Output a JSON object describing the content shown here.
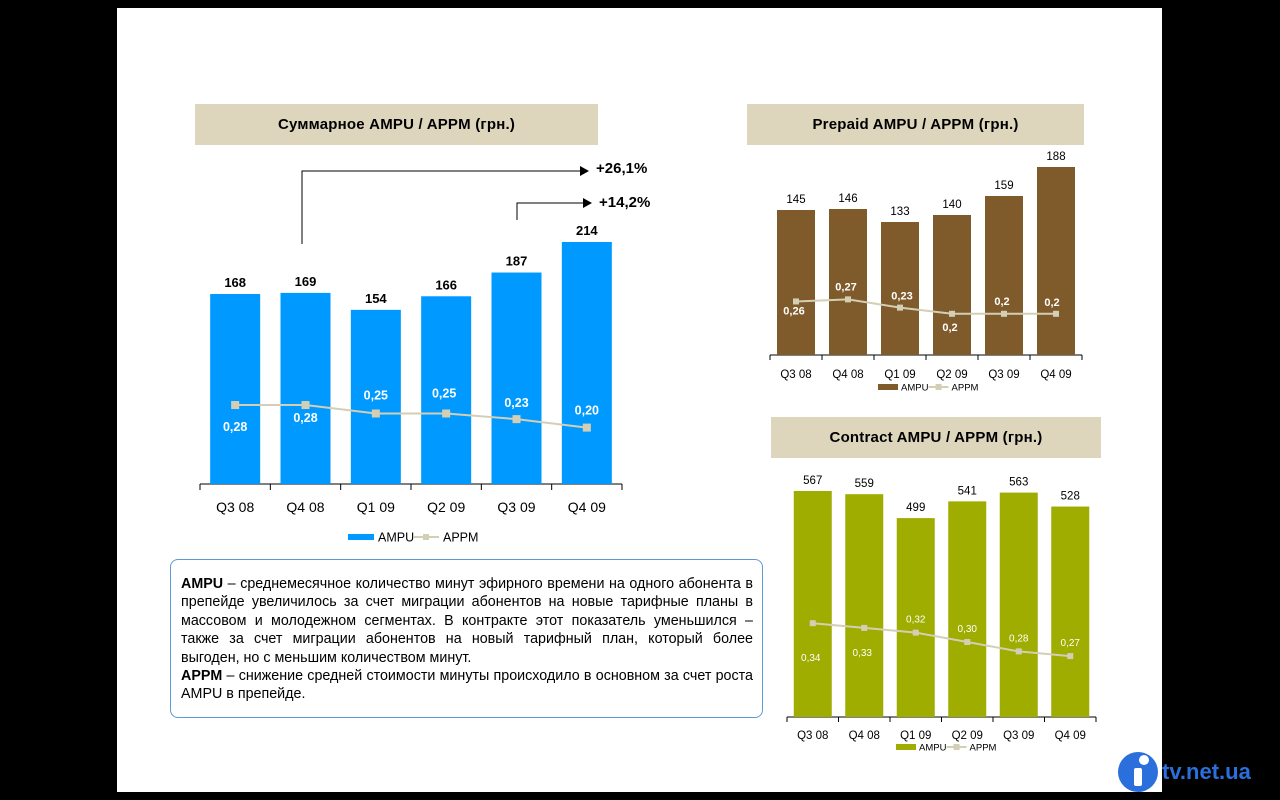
{
  "titles": {
    "total": "Суммарное AMPU / APPM (грн.)",
    "prepaid": "Prepaid AMPU / APPM (грн.)",
    "contract": "Contract AMPU / APPM (грн.)"
  },
  "growth": {
    "yearly": "+26,1%",
    "quarterly": "+14,2%"
  },
  "note": {
    "ampu_term": "AMPU",
    "ampu_text": " – среднемесячное количество минут эфирного времени на одного абонента в препейде увеличилось за счет миграции абонентов на новые тарифные планы в массовом и молодежном сегментах. В контракте этот показатель уменьшился – также за счет миграции абонентов на новый тарифный план, который более выгоден, но с меньшим количеством минут.",
    "appm_term": "APPM",
    "appm_text": " – снижение средней стоимости минуты происходило в основном за счет роста  AMPU в препейде."
  },
  "logo": {
    "text": "tv.net.ua"
  },
  "chart_data": [
    {
      "type": "bar",
      "title": "Суммарное AMPU / APPM (грн.)",
      "categories": [
        "Q3 08",
        "Q4 08",
        "Q1 09",
        "Q2 09",
        "Q3 09",
        "Q4 09"
      ],
      "series": [
        {
          "name": "AMPU",
          "type": "bar",
          "color": "#0099ff",
          "values": [
            168,
            169,
            154,
            166,
            187,
            214
          ],
          "labels": [
            "168",
            "169",
            "154",
            "166",
            "187",
            "214"
          ]
        },
        {
          "name": "APPM",
          "type": "line",
          "color": "#d4cfb4",
          "values": [
            0.28,
            0.28,
            0.25,
            0.25,
            0.23,
            0.2
          ],
          "labels": [
            "0,28",
            "0,28",
            "0,25",
            "0,25",
            "0,23",
            "0,20"
          ]
        }
      ],
      "legend": "bottom"
    },
    {
      "type": "bar",
      "title": "Prepaid AMPU / APPM (грн.)",
      "categories": [
        "Q3 08",
        "Q4 08",
        "Q1 09",
        "Q2 09",
        "Q3 09",
        "Q4 09"
      ],
      "series": [
        {
          "name": "AMPU",
          "type": "bar",
          "color": "#7f5a2b",
          "values": [
            145,
            146,
            133,
            140,
            159,
            188
          ],
          "labels": [
            "145",
            "146",
            "133",
            "140",
            "159",
            "188"
          ]
        },
        {
          "name": "APPM",
          "type": "line",
          "color": "#d4cfb4",
          "values": [
            0.26,
            0.27,
            0.23,
            0.2,
            0.2,
            0.2
          ],
          "labels": [
            "0,26",
            "0,27",
            "0,23",
            "0,2",
            "0,2",
            "0,2"
          ]
        }
      ],
      "legend": "bottom"
    },
    {
      "type": "bar",
      "title": "Contract AMPU / APPM (грн.)",
      "categories": [
        "Q3 08",
        "Q4 08",
        "Q1 09",
        "Q2 09",
        "Q3 09",
        "Q4 09"
      ],
      "series": [
        {
          "name": "AMPU",
          "type": "bar",
          "color": "#9fac00",
          "values": [
            567,
            559,
            499,
            541,
            563,
            528
          ],
          "labels": [
            "567",
            "559",
            "499",
            "541",
            "563",
            "528"
          ]
        },
        {
          "name": "APPM",
          "type": "line",
          "color": "#d4cfb4",
          "values": [
            0.34,
            0.33,
            0.32,
            0.3,
            0.28,
            0.27
          ],
          "labels": [
            "0,34",
            "0,33",
            "0,32",
            "0,30",
            "0,28",
            "0,27"
          ]
        }
      ],
      "legend": "bottom"
    }
  ]
}
